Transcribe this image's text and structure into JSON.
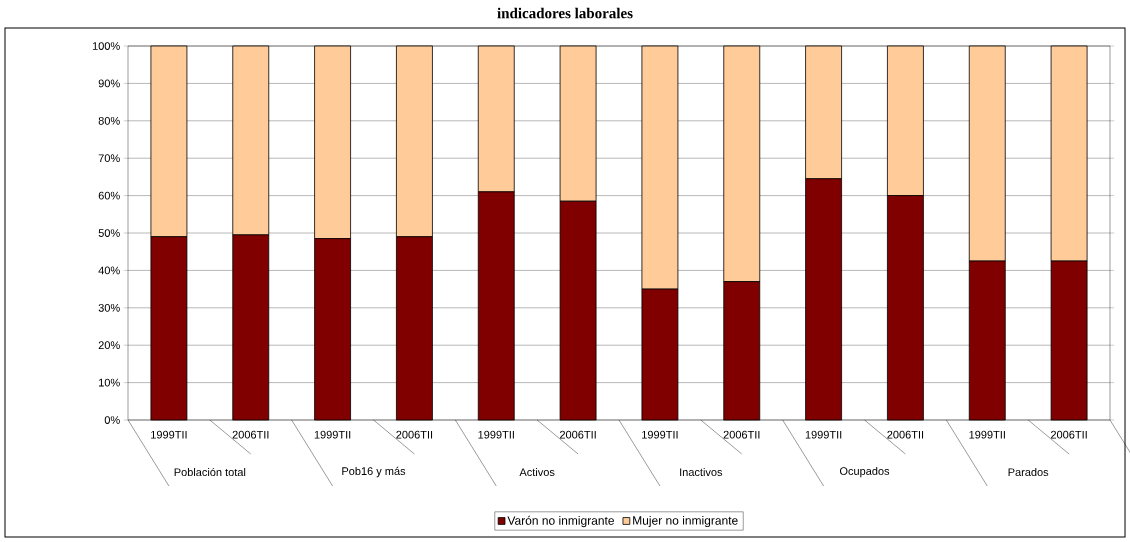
{
  "chart_data": {
    "type": "bar",
    "title": "indicadores laborales",
    "stacked": true,
    "categories": [
      "1999TII",
      "2006TII",
      "1999TII",
      "2006TII",
      "1999TII",
      "2006TII",
      "1999TII",
      "2006TII",
      "1999TII",
      "2006TII",
      "1999TII",
      "2006TII"
    ],
    "annotations": [
      "Población total",
      "Pob16 y más",
      "Activos",
      "Inactivos",
      "Ocupados",
      "Parados"
    ],
    "series": [
      {
        "name": "Varón no inmigrante",
        "color": "#800000",
        "values": [
          49,
          49.5,
          48.5,
          49,
          61,
          58.5,
          35,
          37,
          64.5,
          60,
          42.5,
          42.5
        ]
      },
      {
        "name": "Mujer no inmigrante",
        "color": "#ffcc99",
        "values": [
          51,
          50.5,
          51.5,
          51,
          39,
          41.5,
          65,
          63,
          35.5,
          40,
          57.5,
          57.5
        ]
      }
    ],
    "ylim": [
      0,
      100
    ],
    "yticks": [
      {
        "value": 0,
        "label": "0%"
      },
      {
        "value": 10,
        "label": "10%"
      },
      {
        "value": 20,
        "label": "20%"
      },
      {
        "value": 30,
        "label": "30%"
      },
      {
        "value": 40,
        "label": "40%"
      },
      {
        "value": 50,
        "label": "50%"
      },
      {
        "value": 60,
        "label": "60%"
      },
      {
        "value": 70,
        "label": "70%"
      },
      {
        "value": 80,
        "label": "80%"
      },
      {
        "value": 90,
        "label": "90%"
      },
      {
        "value": 100,
        "label": "100%"
      }
    ],
    "grid": "y",
    "legend": "bottom"
  }
}
